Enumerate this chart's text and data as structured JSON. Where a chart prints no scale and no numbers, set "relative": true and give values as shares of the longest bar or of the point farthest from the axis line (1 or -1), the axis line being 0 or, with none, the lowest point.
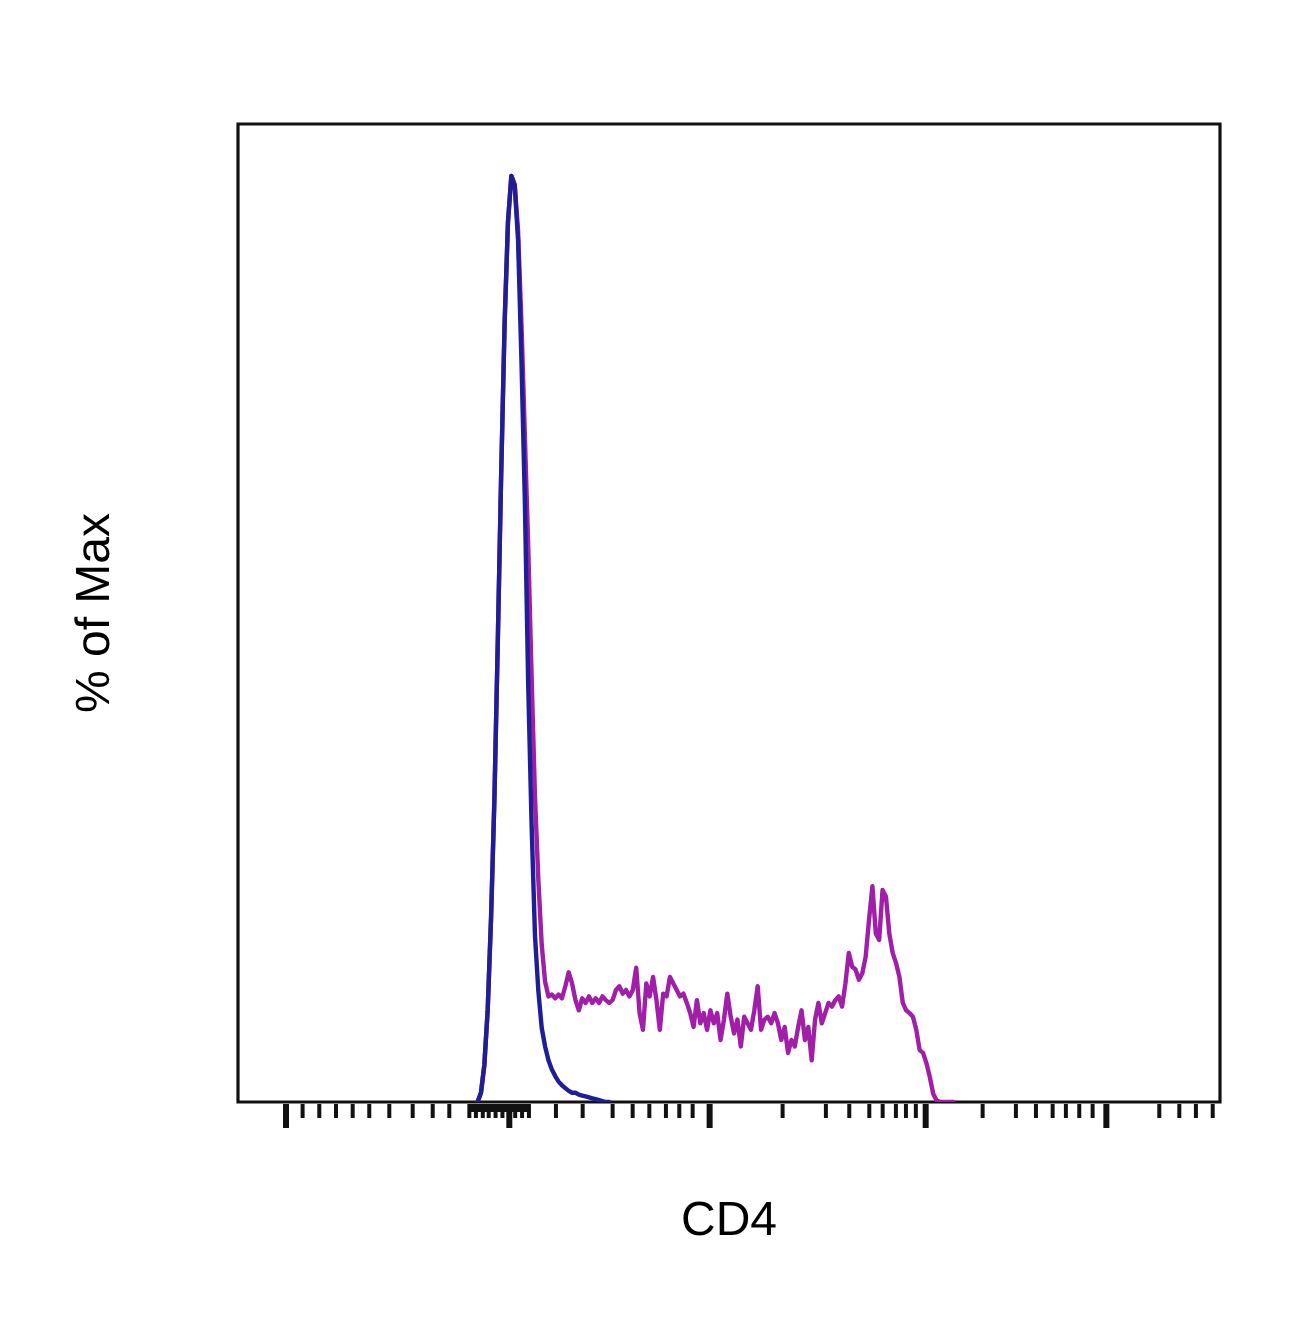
{
  "chart_data": {
    "type": "line",
    "relative": true,
    "xlabel": "CD4",
    "ylabel": "% of Max",
    "marker": "none",
    "categories": [
      null,
      null,
      null,
      null,
      null,
      null,
      null,
      null,
      null,
      null,
      null,
      null,
      null,
      null,
      null,
      null,
      null,
      null,
      null,
      null,
      null,
      null,
      null,
      null,
      null,
      null,
      null,
      null,
      null,
      null,
      null,
      null,
      null,
      null,
      null,
      null,
      null,
      null,
      null,
      null,
      null,
      null,
      null,
      null,
      null,
      null,
      null,
      null,
      null,
      null,
      null,
      null,
      null,
      null,
      null,
      null,
      null,
      null,
      null,
      null,
      null,
      null,
      null,
      null,
      null,
      null,
      null,
      null,
      null,
      null,
      null,
      null,
      null,
      null,
      null,
      null,
      null,
      null,
      null,
      null,
      null,
      null,
      null,
      null,
      null,
      null,
      null,
      null,
      null,
      null,
      null,
      null,
      null,
      null,
      null,
      null,
      null,
      null,
      null,
      null,
      null,
      null,
      null,
      null,
      null,
      null,
      null,
      null,
      null,
      null,
      null,
      null,
      null,
      null,
      null,
      null,
      null,
      null,
      null,
      null,
      null,
      null,
      null,
      null,
      null,
      null,
      null,
      null,
      null,
      null,
      null,
      null,
      null,
      null,
      null,
      null,
      null,
      null,
      null,
      null,
      null,
      null,
      null,
      null,
      null,
      null,
      null,
      null,
      null,
      null,
      null,
      null,
      null,
      null,
      null,
      null,
      null,
      null,
      null,
      null,
      null,
      null,
      null,
      null,
      null,
      null,
      null,
      null,
      null,
      null,
      null,
      null,
      null,
      null,
      null,
      null,
      null,
      null,
      null,
      null,
      null,
      null,
      null,
      null,
      null,
      null,
      null,
      null,
      null,
      null,
      null,
      null,
      null,
      null,
      null,
      null,
      null,
      null,
      null,
      null,
      null,
      null,
      null,
      null,
      null,
      null,
      null,
      null,
      null,
      null,
      null,
      null,
      null,
      null,
      null,
      null,
      null,
      null,
      null,
      null,
      null,
      null,
      null,
      null,
      null,
      null,
      null,
      null,
      null,
      null,
      null,
      null,
      null,
      null,
      null,
      null,
      null,
      null,
      null,
      null,
      null,
      null,
      null,
      null,
      null,
      null,
      null,
      null,
      null,
      null,
      null,
      null,
      null,
      null,
      null,
      null,
      null,
      null,
      null,
      null,
      null,
      null,
      null,
      null,
      null,
      null,
      null,
      null,
      null,
      null,
      null,
      null,
      null,
      null,
      null,
      null,
      null,
      null,
      null,
      null,
      null,
      null,
      null,
      null,
      null,
      null,
      null,
      null,
      null,
      null,
      null,
      null
    ],
    "series": [
      {
        "color": "#1e1e96",
        "values": [
          null,
          null,
          null,
          null,
          null,
          null,
          null,
          null,
          null,
          null,
          null,
          null,
          null,
          null,
          null,
          null,
          null,
          null,
          null,
          null,
          null,
          null,
          null,
          null,
          null,
          null,
          null,
          null,
          null,
          null,
          null,
          null,
          null,
          null,
          null,
          null,
          null,
          null,
          null,
          null,
          null,
          null,
          null,
          null,
          null,
          null,
          null,
          null,
          null,
          null,
          null,
          null,
          null,
          null,
          null,
          null,
          null,
          null,
          null,
          null,
          null,
          null,
          null,
          null,
          null,
          null,
          null,
          null,
          null,
          null,
          null,
          0,
          0.01,
          0.04,
          0.1,
          0.2,
          0.33,
          0.5,
          0.68,
          0.84,
          0.95,
          1,
          0.99,
          0.93,
          0.8,
          0.65,
          0.45,
          0.3,
          0.18,
          0.12,
          0.08,
          0.06,
          0.045,
          0.035,
          0.028,
          0.022,
          0.018,
          0.015,
          0.012,
          0.01,
          0.01,
          0.008,
          0.007,
          0.006,
          0.005,
          0.004,
          0.003,
          0.002,
          0.001,
          0,
          0,
          null,
          null,
          null,
          null,
          null,
          null,
          null,
          null,
          null,
          null,
          null,
          null,
          null,
          null,
          null,
          null,
          null,
          null,
          null,
          null,
          null,
          null,
          null,
          null,
          null,
          null,
          null,
          null,
          null,
          null,
          null,
          null,
          null,
          null,
          null,
          null,
          null,
          null,
          null,
          null,
          null,
          null,
          null,
          null,
          null,
          null,
          null,
          null,
          null,
          null,
          null,
          null,
          null,
          null,
          null,
          null,
          null,
          null,
          null,
          null,
          null,
          null,
          null,
          null,
          null,
          null,
          null,
          null,
          null,
          null,
          null,
          null,
          null,
          null,
          null,
          null,
          null,
          null,
          null,
          null,
          null,
          null,
          null,
          null,
          null,
          null,
          null,
          null,
          null,
          null,
          null,
          null,
          null,
          null,
          null,
          null,
          null,
          null,
          null,
          null,
          null,
          null,
          null,
          null,
          null,
          null,
          null,
          null,
          null,
          null,
          null,
          null,
          null,
          null,
          null,
          null,
          null,
          null,
          null,
          null,
          null,
          null,
          null,
          null,
          null,
          null,
          null,
          null,
          null,
          null,
          null,
          null,
          null,
          null,
          null,
          null,
          null,
          null,
          null,
          null,
          null,
          null,
          null,
          null,
          null,
          null,
          null,
          null,
          null,
          null,
          null,
          null,
          null,
          null,
          null,
          null,
          null,
          null,
          null,
          null,
          null,
          null,
          null,
          null,
          null,
          null,
          null,
          null,
          null,
          null,
          null,
          null,
          null,
          null,
          null,
          null,
          null,
          null,
          null,
          null,
          null
        ]
      },
      {
        "color": "#a01ea8",
        "values": [
          null,
          null,
          null,
          null,
          null,
          null,
          null,
          null,
          null,
          null,
          null,
          null,
          null,
          null,
          null,
          null,
          null,
          null,
          null,
          null,
          null,
          null,
          null,
          null,
          null,
          null,
          null,
          null,
          null,
          null,
          null,
          null,
          null,
          null,
          null,
          null,
          null,
          null,
          null,
          null,
          null,
          null,
          null,
          null,
          null,
          null,
          null,
          null,
          null,
          null,
          null,
          null,
          null,
          null,
          null,
          null,
          null,
          null,
          null,
          null,
          null,
          null,
          null,
          null,
          null,
          null,
          null,
          null,
          null,
          null,
          null,
          0,
          0.01,
          0.04,
          0.1,
          0.2,
          0.33,
          0.5,
          0.68,
          0.84,
          0.95,
          1,
          0.99,
          0.94,
          0.84,
          0.72,
          0.6,
          0.46,
          0.33,
          0.24,
          0.17,
          0.13,
          0.114,
          0.116,
          0.112,
          0.116,
          0.112,
          0.125,
          0.14,
          0.128,
          0.11,
          0.099,
          0.112,
          0.107,
          0.114,
          0.107,
          0.112,
          0.107,
          0.114,
          0.11,
          0.107,
          0.11,
          0.121,
          0.125,
          0.117,
          0.121,
          0.114,
          0.121,
          0.145,
          0.096,
          0.078,
          0.128,
          0.114,
          0.135,
          0.11,
          0.078,
          0.117,
          0.114,
          0.135,
          0.128,
          0.121,
          0.114,
          0.117,
          0.107,
          0.096,
          0.081,
          0.11,
          0.085,
          0.096,
          0.078,
          0.099,
          0.085,
          0.096,
          0.067,
          0.089,
          0.117,
          0.092,
          0.074,
          0.089,
          0.06,
          0.092,
          0.085,
          0.078,
          0.099,
          0.125,
          0.078,
          0.089,
          0.092,
          0.085,
          0.096,
          0.085,
          0.067,
          0.081,
          0.053,
          0.067,
          0.06,
          0.081,
          0.099,
          0.067,
          0.081,
          0.045,
          0.089,
          0.107,
          0.085,
          0.096,
          0.107,
          0.103,
          0.11,
          0.114,
          0.103,
          0.128,
          0.161,
          0.146,
          0.143,
          0.132,
          0.139,
          0.157,
          0.197,
          0.233,
          0.182,
          0.175,
          0.229,
          0.222,
          0.182,
          0.161,
          0.15,
          0.135,
          0.107,
          0.099,
          0.096,
          0.092,
          0.078,
          0.056,
          0.053,
          0.042,
          0.027,
          0.009,
          0.002,
          0,
          0,
          0,
          0,
          0,
          null,
          null,
          null,
          null,
          null,
          null,
          null,
          null,
          null,
          null,
          null,
          null,
          null,
          null,
          null,
          null,
          null,
          null,
          null,
          null,
          null,
          null,
          null,
          null,
          null,
          null,
          null,
          null,
          null,
          null,
          null,
          null,
          null,
          null,
          null,
          null,
          null,
          null,
          null,
          null,
          null,
          null,
          null,
          null,
          null,
          null,
          null,
          null,
          null,
          null,
          null,
          null,
          null,
          null,
          null,
          null,
          null,
          null,
          null,
          null,
          null,
          null,
          null,
          null,
          null,
          null,
          null,
          null,
          null,
          null,
          null,
          null,
          null,
          null,
          null,
          null,
          null,
          null,
          null
        ]
      }
    ]
  }
}
